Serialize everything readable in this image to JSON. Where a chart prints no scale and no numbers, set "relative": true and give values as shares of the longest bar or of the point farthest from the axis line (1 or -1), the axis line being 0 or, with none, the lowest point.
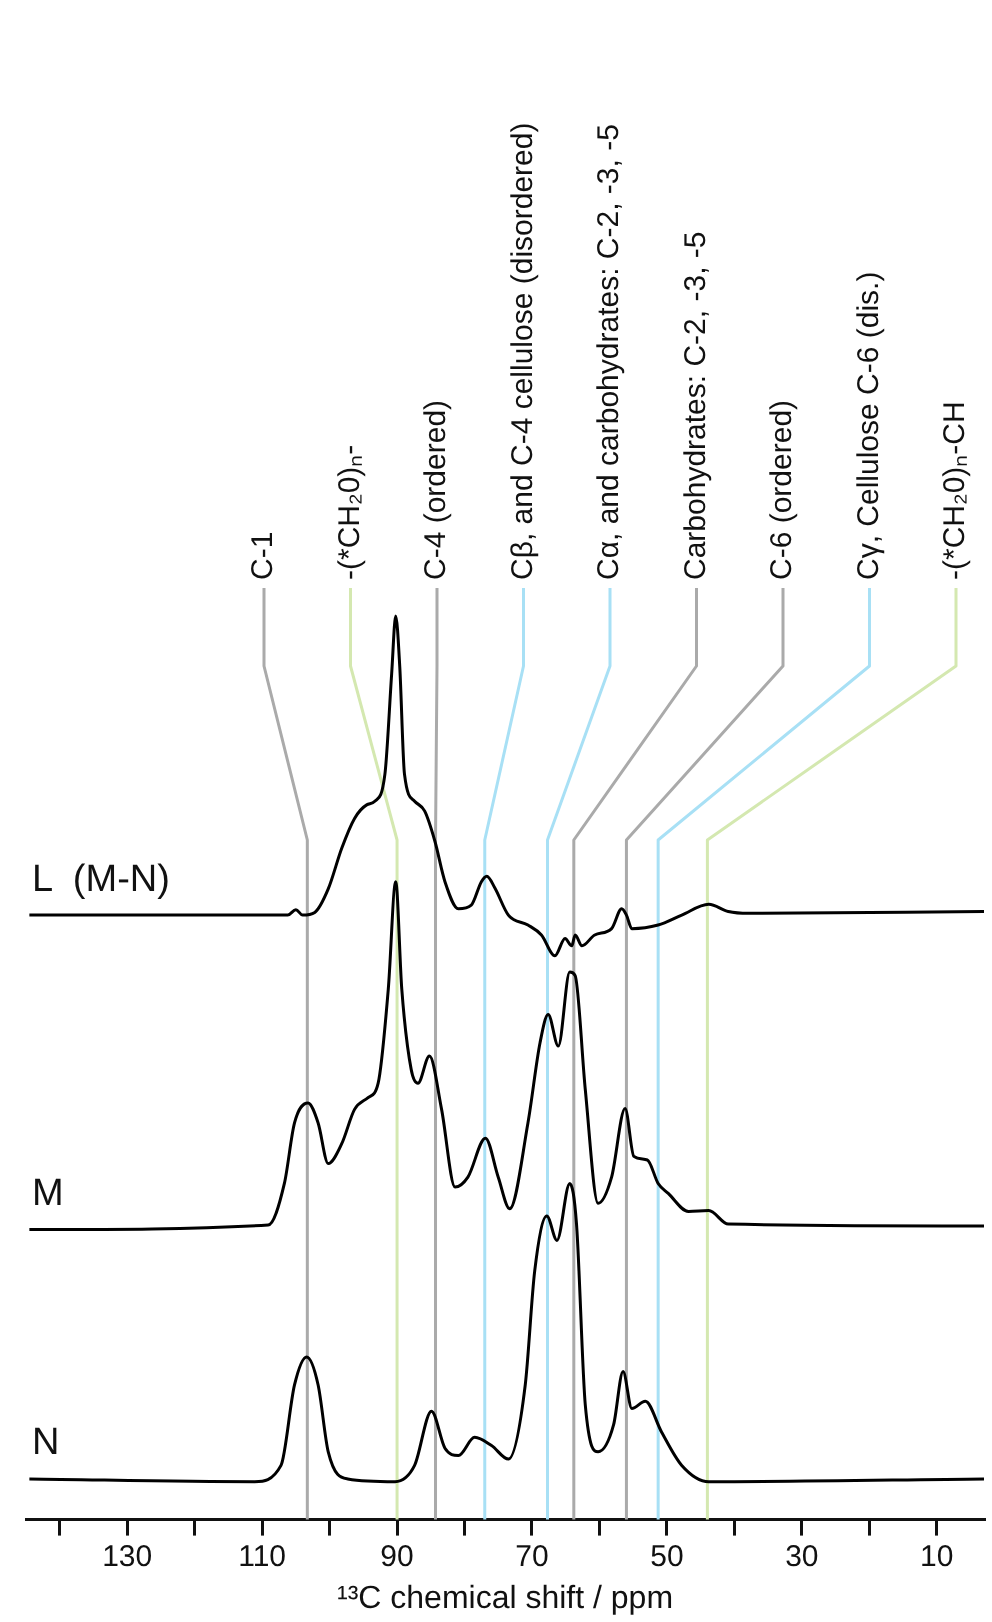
{
  "chart_data": {
    "type": "line",
    "relative": true,
    "xlabel": "¹³C chemical shift / ppm",
    "xlim": [
      145,
      3
    ],
    "xticks": [
      {
        "value": 140,
        "label": null
      },
      130,
      {
        "value": 120,
        "label": null
      },
      110,
      {
        "value": 100,
        "label": null
      },
      90,
      {
        "value": 80,
        "label": null
      },
      70,
      {
        "value": 60,
        "label": null
      },
      50,
      {
        "value": 40,
        "label": null
      },
      30,
      {
        "value": 20,
        "label": null
      },
      10
    ],
    "grid": false,
    "legend": false,
    "marker": "none",
    "line_style": "solid",
    "series": [
      {
        "name": "L  (M-N)",
        "color": "#000000",
        "x": [
          144.5,
          106.2,
          105.0,
          104.0,
          102.2,
          100.2,
          98.2,
          96.3,
          94.5,
          93.3,
          91.8,
          90.8,
          90.2,
          89.6,
          88.9,
          87.4,
          85.9,
          84.4,
          82.9,
          80.9,
          79.0,
          77.5,
          76.7,
          75.5,
          73.5,
          70.6,
          68.6,
          66.6,
          65.1,
          64.1,
          63.6,
          62.6,
          60.7,
          58.2,
          56.7,
          56.0,
          55.2,
          51.3,
          47.8,
          43.8,
          40.9,
          37.9,
          3
        ],
        "values": [
          0.669,
          0.669,
          0.675,
          0.669,
          0.672,
          0.698,
          0.743,
          0.776,
          0.791,
          0.795,
          0.825,
          0.936,
          1.0,
          0.944,
          0.825,
          0.795,
          0.784,
          0.751,
          0.706,
          0.676,
          0.68,
          0.706,
          0.712,
          0.699,
          0.669,
          0.658,
          0.647,
          0.624,
          0.643,
          0.635,
          0.647,
          0.635,
          0.647,
          0.654,
          0.676,
          0.669,
          0.654,
          0.658,
          0.669,
          0.681,
          0.673,
          0.671,
          0.673
        ]
      },
      {
        "name": "M",
        "color": "#000000",
        "x": [
          144.5,
          109.1,
          106.7,
          105.2,
          103.2,
          101.7,
          100.2,
          98.2,
          96.3,
          94.3,
          92.8,
          91.3,
          90.2,
          89.3,
          87.9,
          86.9,
          85.2,
          83.4,
          81.4,
          79.5,
          76.9,
          75.0,
          73.3,
          70.6,
          68.8,
          67.6,
          66.1,
          64.4,
          63.6,
          62.1,
          60.2,
          58.2,
          56.2,
          54.9,
          52.9,
          51.3,
          49.8,
          46.8,
          43.8,
          40.9,
          3
        ],
        "values": [
          0.321,
          0.326,
          0.372,
          0.439,
          0.461,
          0.439,
          0.394,
          0.416,
          0.454,
          0.467,
          0.483,
          0.587,
          0.706,
          0.587,
          0.498,
          0.483,
          0.513,
          0.454,
          0.368,
          0.379,
          0.422,
          0.379,
          0.344,
          0.439,
          0.528,
          0.559,
          0.524,
          0.606,
          0.602,
          0.476,
          0.35,
          0.379,
          0.455,
          0.402,
          0.398,
          0.372,
          0.361,
          0.341,
          0.342,
          0.327,
          0.325
        ]
      },
      {
        "name": "N",
        "color": "#000000",
        "x": [
          144.5,
          111.1,
          107.2,
          105.2,
          103.4,
          101.7,
          100.2,
          97.3,
          90.3,
          87.4,
          84.9,
          82.9,
          80.9,
          78.5,
          76.0,
          73.5,
          71.0,
          69.6,
          67.8,
          66.3,
          64.4,
          63.4,
          62.1,
          60.2,
          57.9,
          56.5,
          55.2,
          53.2,
          50.8,
          47.8,
          43.8,
          3
        ],
        "values": [
          0.045,
          0.042,
          0.06,
          0.149,
          0.18,
          0.149,
          0.075,
          0.045,
          0.042,
          0.06,
          0.12,
          0.079,
          0.071,
          0.091,
          0.082,
          0.067,
          0.149,
          0.275,
          0.336,
          0.309,
          0.372,
          0.327,
          0.127,
          0.075,
          0.105,
          0.164,
          0.123,
          0.131,
          0.097,
          0.06,
          0.042,
          0.045
        ]
      }
    ],
    "ref_lines": [
      {
        "axis": "x",
        "value": 103.3,
        "label": "C-1",
        "color": "#aaaaaa"
      },
      {
        "axis": "x",
        "value": 90,
        "label": "-(*CH₂0)ₙ-",
        "color": "#d4e8b0"
      },
      {
        "axis": "x",
        "value": 84.3,
        "label": "C-4 (ordered)",
        "color": "#aaaaaa"
      },
      {
        "axis": "x",
        "value": 77,
        "label": "Cβ, and C-4 cellulose (disordered)",
        "color": "#a8e0f5"
      },
      {
        "axis": "x",
        "value": 67.7,
        "label": "Cα, and carbohydrates: C-2, -3, -5",
        "color": "#a8e0f5"
      },
      {
        "axis": "x",
        "value": 63.8,
        "label": "Carbohydrates: C-2, -3, -5",
        "color": "#aaaaaa"
      },
      {
        "axis": "x",
        "value": 56,
        "label": "C-6 (ordered)",
        "color": "#aaaaaa"
      },
      {
        "axis": "x",
        "value": 51.3,
        "label": "Cγ, Cellulose C-6 (dis.)",
        "color": "#a8e0f5"
      },
      {
        "axis": "x",
        "value": 44,
        "label": "-(*CH₂0)ₙ-CH",
        "color": "#d4e8b0"
      }
    ]
  }
}
